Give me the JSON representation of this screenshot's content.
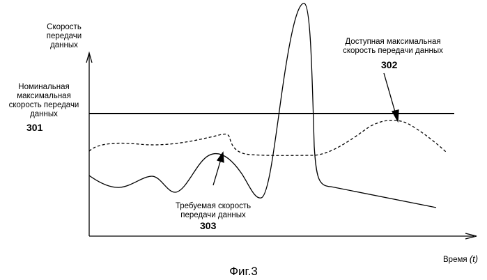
{
  "axes": {
    "y_label": [
      "Скорость",
      "передачи",
      "данных"
    ],
    "x_label": "Время",
    "x_var": "(t)"
  },
  "labels": {
    "nominal": [
      "Номинальная",
      "максимальная",
      "скорость передачи",
      "данных"
    ],
    "nominal_id": "301",
    "available": [
      "Доступная максимальная",
      "скорость передачи данных"
    ],
    "available_id": "302",
    "required": [
      "Требуемая скорость",
      "передачи данных"
    ],
    "required_id": "303"
  },
  "figure_caption": "Фиг.3",
  "colors": {
    "ink": "#000000",
    "background": "#ffffff"
  }
}
